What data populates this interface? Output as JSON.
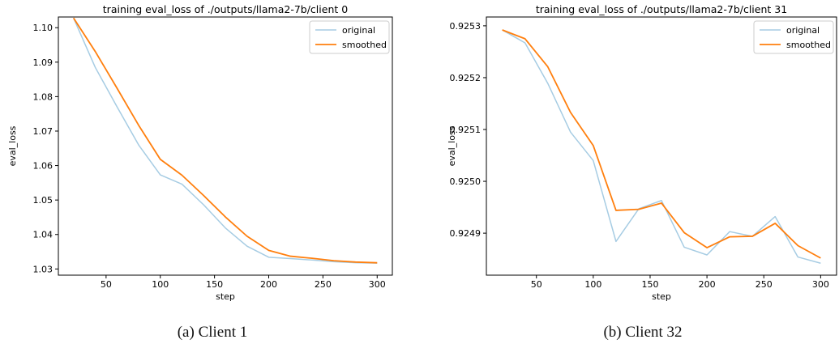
{
  "figure": {
    "captions": [
      "(a)  Client 1",
      "(b)  Client 32"
    ]
  },
  "colors": {
    "original": "#a6cce3",
    "smoothed": "#ff7f0e",
    "axis": "#000000",
    "text": "#000000"
  },
  "chart_data": [
    {
      "type": "line",
      "title": "training eval_loss of ./outputs/llama2-7b/client 0",
      "xlabel": "step",
      "ylabel": "eval_loss",
      "xlim": [
        6,
        314
      ],
      "ylim": [
        1.0282,
        1.1031
      ],
      "xticks": [
        50,
        100,
        150,
        200,
        250,
        300
      ],
      "xtick_labels": [
        "50",
        "100",
        "150",
        "200",
        "250",
        "300"
      ],
      "yticks": [
        1.03,
        1.04,
        1.05,
        1.06,
        1.07,
        1.08,
        1.09,
        1.1
      ],
      "ytick_labels": [
        "1.03",
        "1.04",
        "1.05",
        "1.06",
        "1.07",
        "1.08",
        "1.09",
        "1.10"
      ],
      "grid": false,
      "legend_position": "top-right",
      "x": [
        20,
        40,
        60,
        80,
        100,
        120,
        140,
        160,
        180,
        200,
        220,
        240,
        260,
        280,
        300
      ],
      "series": [
        {
          "name": "original",
          "color": "#a6cce3",
          "values": [
            1.1028,
            1.0885,
            1.0771,
            1.066,
            1.0573,
            1.0546,
            1.0486,
            1.0419,
            1.0366,
            1.0334,
            1.033,
            1.0326,
            1.0321,
            1.0318,
            1.0317
          ]
        },
        {
          "name": "smoothed",
          "color": "#ff7f0e",
          "values": [
            1.1028,
            1.0931,
            1.0825,
            1.0717,
            1.0618,
            1.0572,
            1.0513,
            1.0451,
            1.0395,
            1.0354,
            1.0337,
            1.0331,
            1.0324,
            1.032,
            1.0318
          ]
        }
      ]
    },
    {
      "type": "line",
      "title": "training eval_loss of ./outputs/llama2-7b/client 31",
      "xlabel": "step",
      "ylabel": "eval_loss",
      "xlim": [
        6,
        314
      ],
      "ylim": [
        0.924819,
        0.925317
      ],
      "xticks": [
        50,
        100,
        150,
        200,
        250,
        300
      ],
      "xtick_labels": [
        "50",
        "100",
        "150",
        "200",
        "250",
        "300"
      ],
      "yticks": [
        0.9249,
        0.925,
        0.9251,
        0.9252,
        0.9253
      ],
      "ytick_labels": [
        "0.9249",
        "0.9250",
        "0.9251",
        "0.9252",
        "0.9253"
      ],
      "grid": false,
      "legend_position": "top-right",
      "x": [
        20,
        40,
        60,
        80,
        100,
        120,
        140,
        160,
        180,
        200,
        220,
        240,
        260,
        280,
        300
      ],
      "series": [
        {
          "name": "original",
          "color": "#a6cce3",
          "values": [
            0.925292,
            0.925267,
            0.925189,
            0.925095,
            0.92504,
            0.924884,
            0.924947,
            0.924963,
            0.924873,
            0.924858,
            0.924903,
            0.924894,
            0.924932,
            0.924854,
            0.924842
          ]
        },
        {
          "name": "smoothed",
          "color": "#ff7f0e",
          "values": [
            0.925292,
            0.925275,
            0.925221,
            0.925133,
            0.925069,
            0.924944,
            0.924946,
            0.924958,
            0.924901,
            0.924872,
            0.924893,
            0.924894,
            0.924919,
            0.924876,
            0.924852
          ]
        }
      ]
    }
  ]
}
